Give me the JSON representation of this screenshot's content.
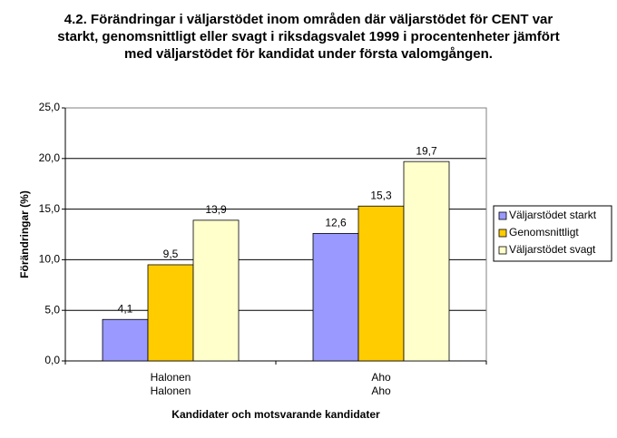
{
  "chart_data": {
    "type": "bar",
    "title": "4.2. Förändringar i väljarstödet inom områden där väljarstödet för CENT var starkt, genomsnittligt eller svagt i riksdagsvalet 1999 i procentenheter jämfört med väljarstödet för kandidat under första valomgången.",
    "x_label": "Kandidater och motsvarande kandidater",
    "y_label": "Förändringar (%)",
    "categories": [
      [
        "Halonen",
        "Halonen"
      ],
      [
        "Aho",
        "Aho"
      ]
    ],
    "series": [
      {
        "name": "Väljarstödet starkt",
        "color": "#9999ff",
        "values": [
          4.1,
          12.6
        ],
        "value_labels": [
          "4,1",
          "12,6"
        ]
      },
      {
        "name": "Genomsnittligt",
        "color": "#ffcc00",
        "values": [
          9.5,
          15.3
        ],
        "value_labels": [
          "9,5",
          "15,3"
        ]
      },
      {
        "name": "Väljarstödet svagt",
        "color": "#ffffcc",
        "values": [
          13.9,
          19.7
        ],
        "value_labels": [
          "13,9",
          "19,7"
        ]
      }
    ],
    "ylim": [
      0,
      25
    ],
    "yticks": [
      {
        "value": 0,
        "label": "0,0"
      },
      {
        "value": 5,
        "label": "5,0"
      },
      {
        "value": 10,
        "label": "10,0"
      },
      {
        "value": 15,
        "label": "15,0"
      },
      {
        "value": 20,
        "label": "20,0"
      },
      {
        "value": 25,
        "label": "25,0"
      }
    ],
    "grid": true,
    "legend": "right"
  }
}
